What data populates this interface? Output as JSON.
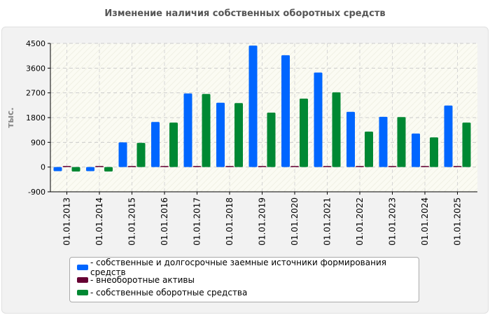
{
  "chart_data": {
    "type": "bar",
    "title": "Изменение наличия собственных оборотных средств",
    "xlabel": "",
    "ylabel": "тыс.",
    "ylim": [
      -900,
      4500
    ],
    "yticks": [
      -900,
      0,
      900,
      1800,
      2700,
      3600,
      4500
    ],
    "grid": true,
    "legend_position": "bottom",
    "categories": [
      "01.01.2013",
      "01.01.2014",
      "01.01.2015",
      "01.01.2016",
      "01.01.2017",
      "01.01.2018",
      "01.01.2019",
      "01.01.2020",
      "01.01.2021",
      "01.01.2022",
      "01.01.2023",
      "01.01.2024",
      "01.01.2025"
    ],
    "series": [
      {
        "name": "собственные и долгосрочные заемные источники формирования средств",
        "color": "#0066ff",
        "values": [
          -150,
          -150,
          900,
          1640,
          2680,
          2340,
          4420,
          4070,
          3440,
          2010,
          1830,
          1220,
          2240
        ]
      },
      {
        "name": "внеоборотные активы",
        "color": "#660033",
        "values": [
          40,
          40,
          40,
          40,
          40,
          40,
          40,
          40,
          40,
          40,
          40,
          40,
          40
        ]
      },
      {
        "name": "собственные оборотные средства",
        "color": "#008833",
        "values": [
          -160,
          -160,
          880,
          1620,
          2660,
          2330,
          1980,
          2490,
          2720,
          1290,
          1820,
          1080,
          1620
        ]
      }
    ]
  }
}
